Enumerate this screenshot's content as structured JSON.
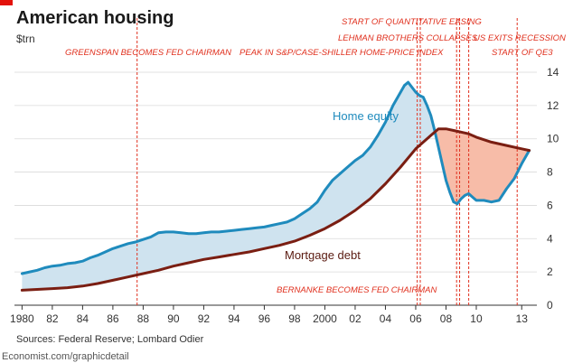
{
  "chart_data": {
    "type": "area",
    "title": "American housing",
    "unit": "$trn",
    "brand_color": "#e3120b",
    "ylim": [
      0,
      14
    ],
    "y_ticks": [
      "0",
      "2",
      "4",
      "6",
      "8",
      "10",
      "12",
      "14"
    ],
    "xlim": [
      1979.5,
      2014.0
    ],
    "x_ticks": [
      {
        "x": 1980,
        "label": "1980"
      },
      {
        "x": 1982,
        "label": "82"
      },
      {
        "x": 1984,
        "label": "84"
      },
      {
        "x": 1986,
        "label": "86"
      },
      {
        "x": 1988,
        "label": "88"
      },
      {
        "x": 1990,
        "label": "90"
      },
      {
        "x": 1992,
        "label": "92"
      },
      {
        "x": 1994,
        "label": "94"
      },
      {
        "x": 1996,
        "label": "96"
      },
      {
        "x": 1998,
        "label": "98"
      },
      {
        "x": 2000,
        "label": "2000"
      },
      {
        "x": 2002,
        "label": "02"
      },
      {
        "x": 2004,
        "label": "04"
      },
      {
        "x": 2006,
        "label": "06"
      },
      {
        "x": 2008,
        "label": "08"
      },
      {
        "x": 2010,
        "label": "10"
      },
      {
        "x": 2013,
        "label": "13"
      }
    ],
    "grid": true,
    "series": [
      {
        "name": "Home equity",
        "color": "#1f8bbd",
        "x": [
          1980,
          1980.5,
          1981,
          1981.5,
          1982,
          1982.5,
          1983,
          1983.5,
          1984,
          1984.5,
          1985,
          1985.5,
          1986,
          1986.5,
          1987,
          1987.5,
          1988,
          1988.5,
          1989,
          1989.5,
          1990,
          1990.5,
          1991,
          1991.5,
          1992,
          1992.5,
          1993,
          1993.5,
          1994,
          1994.5,
          1995,
          1995.5,
          1996,
          1996.5,
          1997,
          1997.5,
          1998,
          1998.5,
          1999,
          1999.5,
          2000,
          2000.5,
          2001,
          2001.5,
          2002,
          2002.5,
          2003,
          2003.5,
          2004,
          2004.5,
          2005,
          2005.25,
          2005.5,
          2005.75,
          2006,
          2006.25,
          2006.5,
          2006.75,
          2007,
          2007.25,
          2007.5,
          2007.75,
          2008,
          2008.25,
          2008.5,
          2008.75,
          2009,
          2009.25,
          2009.5,
          2009.75,
          2010,
          2010.5,
          2011,
          2011.5,
          2012,
          2012.5,
          2013,
          2013.5
        ],
        "values": [
          1.9,
          2.0,
          2.1,
          2.25,
          2.35,
          2.4,
          2.5,
          2.55,
          2.65,
          2.85,
          3.0,
          3.2,
          3.4,
          3.55,
          3.7,
          3.8,
          3.95,
          4.1,
          4.35,
          4.4,
          4.4,
          4.35,
          4.3,
          4.3,
          4.35,
          4.4,
          4.4,
          4.45,
          4.5,
          4.55,
          4.6,
          4.65,
          4.7,
          4.8,
          4.9,
          5.0,
          5.2,
          5.5,
          5.8,
          6.2,
          6.9,
          7.5,
          7.9,
          8.3,
          8.7,
          9.0,
          9.5,
          10.2,
          11.0,
          12.0,
          12.8,
          13.2,
          13.4,
          13.1,
          12.8,
          12.6,
          12.5,
          12.0,
          11.4,
          10.5,
          9.5,
          8.5,
          7.5,
          6.8,
          6.2,
          6.1,
          6.4,
          6.6,
          6.7,
          6.5,
          6.3,
          6.3,
          6.2,
          6.3,
          7.0,
          7.6,
          8.5,
          9.3
        ]
      },
      {
        "name": "Mortgage debt",
        "color": "#7a1e12",
        "x": [
          1980,
          1981,
          1982,
          1983,
          1984,
          1985,
          1986,
          1987,
          1988,
          1989,
          1990,
          1991,
          1992,
          1993,
          1994,
          1995,
          1996,
          1997,
          1998,
          1999,
          2000,
          2001,
          2002,
          2003,
          2004,
          2005,
          2006,
          2007,
          2007.5,
          2008,
          2008.5,
          2009,
          2009.5,
          2010,
          2011,
          2012,
          2013,
          2013.5
        ],
        "values": [
          0.9,
          0.95,
          1.0,
          1.05,
          1.15,
          1.3,
          1.5,
          1.7,
          1.9,
          2.1,
          2.35,
          2.55,
          2.75,
          2.9,
          3.05,
          3.2,
          3.4,
          3.6,
          3.85,
          4.2,
          4.6,
          5.1,
          5.7,
          6.4,
          7.3,
          8.3,
          9.4,
          10.2,
          10.6,
          10.6,
          10.5,
          10.4,
          10.3,
          10.1,
          9.8,
          9.6,
          9.4,
          9.3
        ]
      }
    ],
    "fill_colors": {
      "equity_above": "#cfe3ef",
      "debt_above": "#f7bca8"
    },
    "events": [
      {
        "label": "GREENSPAN BECOMES FED CHAIRMAN",
        "x": 1987.6
      },
      {
        "label": "BERNANKE BECOMES FED CHAIRMAN",
        "x": 2006.1
      },
      {
        "label": "PEAK IN S&P/CASE-SHILLER HOME-PRICE INDEX",
        "x": 2006.3
      },
      {
        "label": "START OF QUANTITATIVE EASING",
        "x": 2008.9
      },
      {
        "label": "LEHMAN BROTHERS COLLAPSES",
        "x": 2008.7
      },
      {
        "label": "US EXITS RECESSION",
        "x": 2009.5
      },
      {
        "label": "START OF QE3",
        "x": 2012.7
      }
    ],
    "source": "Sources: Federal Reserve; Lombard Odier",
    "credit": "Economist.com/graphicdetail"
  }
}
